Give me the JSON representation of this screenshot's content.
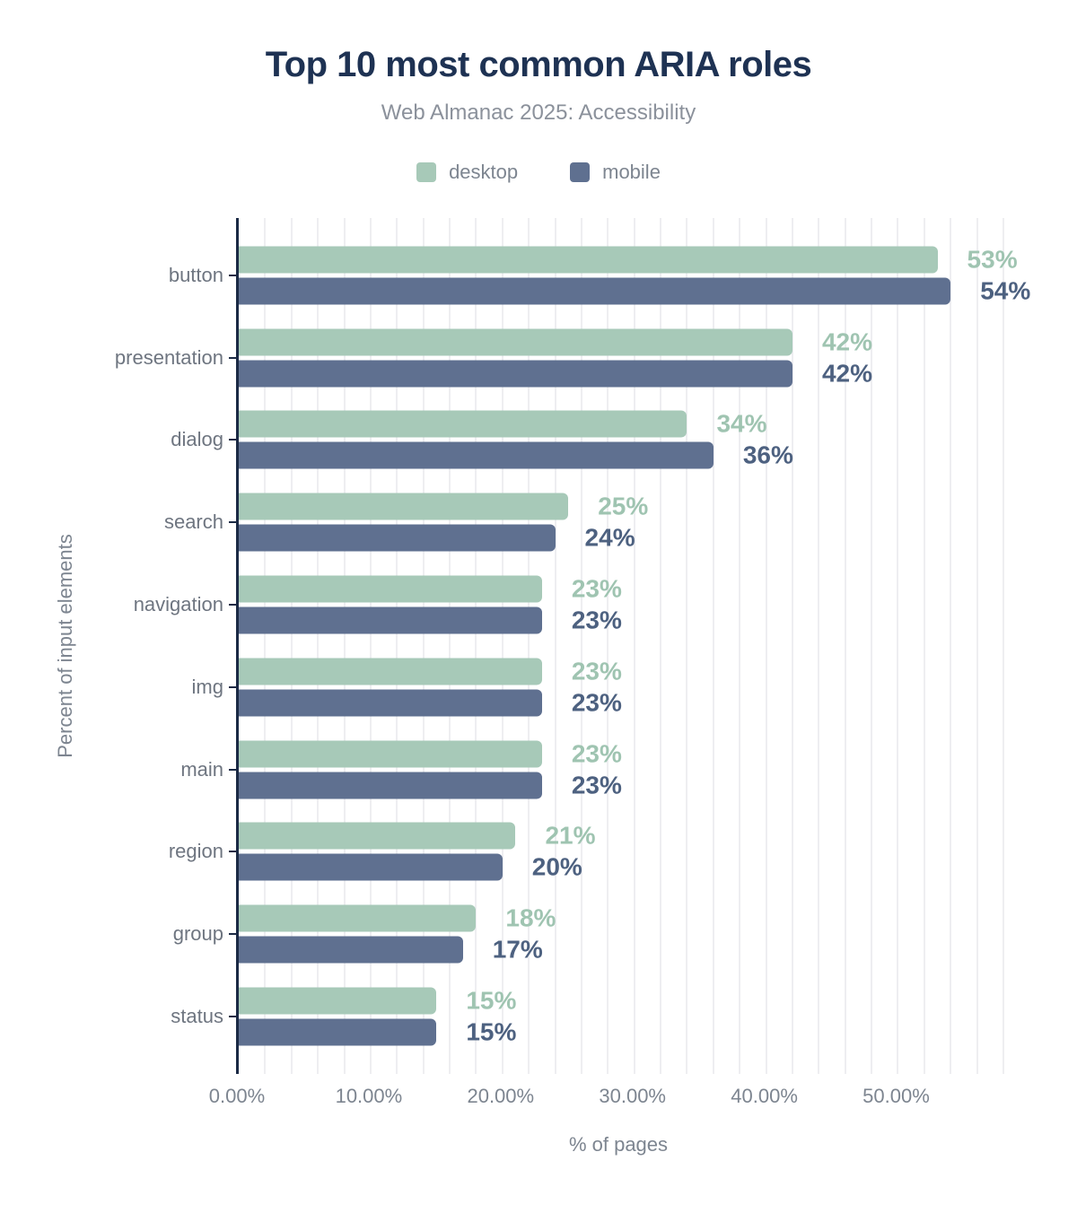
{
  "header": {
    "title": "Top 10 most common ARIA roles",
    "subtitle": "Web Almanac 2025: Accessibility"
  },
  "colors": {
    "desktop_bar": "#a7c9b8",
    "mobile_bar": "#5f7090",
    "desktop_label": "#9fc4b1",
    "mobile_label": "#4d6180",
    "title_text": "#1e3253",
    "axis_text": "#7d8590",
    "category_text": "#6e7580",
    "axis_line": "#1b2a45",
    "gridline": "#eeeef1",
    "background": "#ffffff"
  },
  "chart_data": {
    "type": "bar",
    "orientation": "horizontal",
    "title": "Top 10 most common ARIA roles",
    "subtitle": "Web Almanac 2025: Accessibility",
    "categories": [
      "button",
      "presentation",
      "dialog",
      "search",
      "navigation",
      "img",
      "main",
      "region",
      "group",
      "status"
    ],
    "series": [
      {
        "name": "desktop",
        "values": [
          53,
          42,
          34,
          25,
          23,
          23,
          23,
          21,
          18,
          15
        ],
        "labels": [
          "53%",
          "42%",
          "34%",
          "25%",
          "23%",
          "23%",
          "23%",
          "21%",
          "18%",
          "15%"
        ]
      },
      {
        "name": "mobile",
        "values": [
          54,
          42,
          36,
          24,
          23,
          23,
          23,
          20,
          17,
          15
        ],
        "labels": [
          "54%",
          "42%",
          "36%",
          "24%",
          "23%",
          "23%",
          "23%",
          "20%",
          "17%",
          "15%"
        ]
      }
    ],
    "xlabel": "% of pages",
    "ylabel": "Percent of input elements",
    "xlim": [
      0,
      58
    ],
    "x_tick_values": [
      0,
      10,
      20,
      30,
      40,
      50
    ],
    "x_tick_labels": [
      "0.00%",
      "10.00%",
      "20.00%",
      "30.00%",
      "40.00%",
      "50.00%"
    ],
    "gridline_step": 2,
    "grid": "vertical",
    "legend_position": "top",
    "value_labels": "outside-end"
  }
}
